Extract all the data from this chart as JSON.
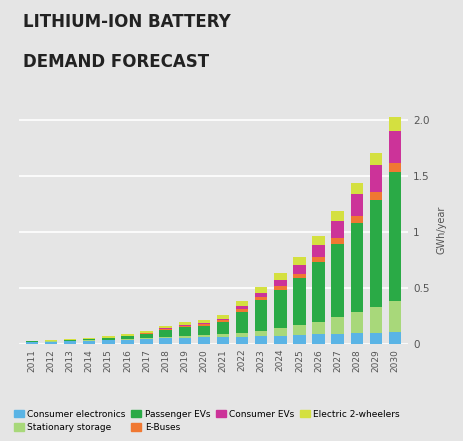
{
  "title_line1": "LITHIUM-ION BATTERY",
  "title_line2": "DEMAND FORECAST",
  "ylabel": "GWh/year",
  "years": [
    2011,
    2012,
    2013,
    2014,
    2015,
    2016,
    2017,
    2018,
    2019,
    2020,
    2021,
    2022,
    2023,
    2024,
    2025,
    2026,
    2027,
    2028,
    2029,
    2030
  ],
  "categories": [
    "Consumer electronics",
    "Stationary storage",
    "Passenger EVs",
    "E-Buses",
    "Consumer EVs",
    "Electric 2-wheelers"
  ],
  "colors": [
    "#5ab4e5",
    "#a8d87a",
    "#2aaa46",
    "#f07832",
    "#cc3399",
    "#d4e040"
  ],
  "data": {
    "Consumer electronics": [
      0.02,
      0.022,
      0.025,
      0.03,
      0.035,
      0.04,
      0.045,
      0.05,
      0.055,
      0.058,
      0.06,
      0.065,
      0.07,
      0.075,
      0.08,
      0.085,
      0.09,
      0.095,
      0.1,
      0.105
    ],
    "Stationary storage": [
      0.002,
      0.002,
      0.003,
      0.004,
      0.005,
      0.007,
      0.01,
      0.015,
      0.018,
      0.02,
      0.025,
      0.035,
      0.05,
      0.065,
      0.09,
      0.115,
      0.15,
      0.19,
      0.23,
      0.28
    ],
    "Passenger EVs": [
      0.003,
      0.004,
      0.006,
      0.009,
      0.013,
      0.02,
      0.035,
      0.06,
      0.075,
      0.085,
      0.11,
      0.19,
      0.27,
      0.34,
      0.42,
      0.53,
      0.65,
      0.8,
      0.96,
      1.15
    ],
    "E-Buses": [
      0.001,
      0.001,
      0.002,
      0.003,
      0.004,
      0.005,
      0.008,
      0.012,
      0.015,
      0.017,
      0.02,
      0.025,
      0.03,
      0.035,
      0.04,
      0.045,
      0.055,
      0.062,
      0.07,
      0.08
    ],
    "Consumer EVs": [
      0.0,
      0.0,
      0.0,
      0.0,
      0.0,
      0.0,
      0.002,
      0.004,
      0.006,
      0.008,
      0.012,
      0.025,
      0.04,
      0.06,
      0.08,
      0.11,
      0.15,
      0.19,
      0.24,
      0.29
    ],
    "Electric 2-wheelers": [
      0.003,
      0.004,
      0.005,
      0.007,
      0.01,
      0.013,
      0.018,
      0.022,
      0.025,
      0.028,
      0.032,
      0.04,
      0.05,
      0.06,
      0.072,
      0.082,
      0.092,
      0.1,
      0.11,
      0.12
    ]
  },
  "ylim": [
    0,
    2.05
  ],
  "yticks": [
    0,
    0.5,
    1.0,
    1.5,
    2.0
  ],
  "background_color": "#e5e5e5",
  "plot_background": "#e5e5e5",
  "title_fontsize": 12,
  "title_fontweight": "bold",
  "bar_width": 0.65
}
